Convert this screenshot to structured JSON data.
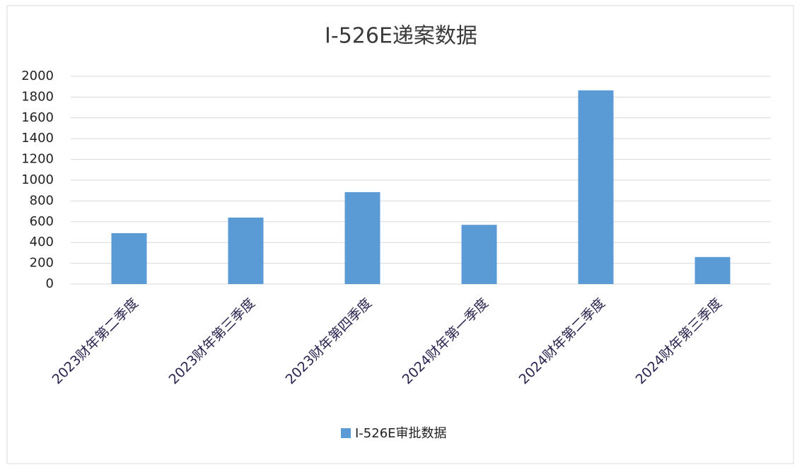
{
  "chart_data": {
    "type": "bar",
    "title": "I-526E递案数据",
    "categories": [
      "2023财年第二季度",
      "2023财年第三季度",
      "2023财年第四季度",
      "2024财年第一季度",
      "2024财年第二季度",
      "2024财年第三季度"
    ],
    "series": [
      {
        "name": "I-526E审批数据",
        "color": "#5b9bd5",
        "values": [
          490,
          640,
          885,
          570,
          1865,
          260
        ]
      }
    ],
    "ylim": [
      0,
      2000
    ],
    "yticks": [
      0,
      200,
      400,
      600,
      800,
      1000,
      1200,
      1400,
      1600,
      1800,
      2000
    ],
    "grid": true,
    "legend": "bottom"
  }
}
